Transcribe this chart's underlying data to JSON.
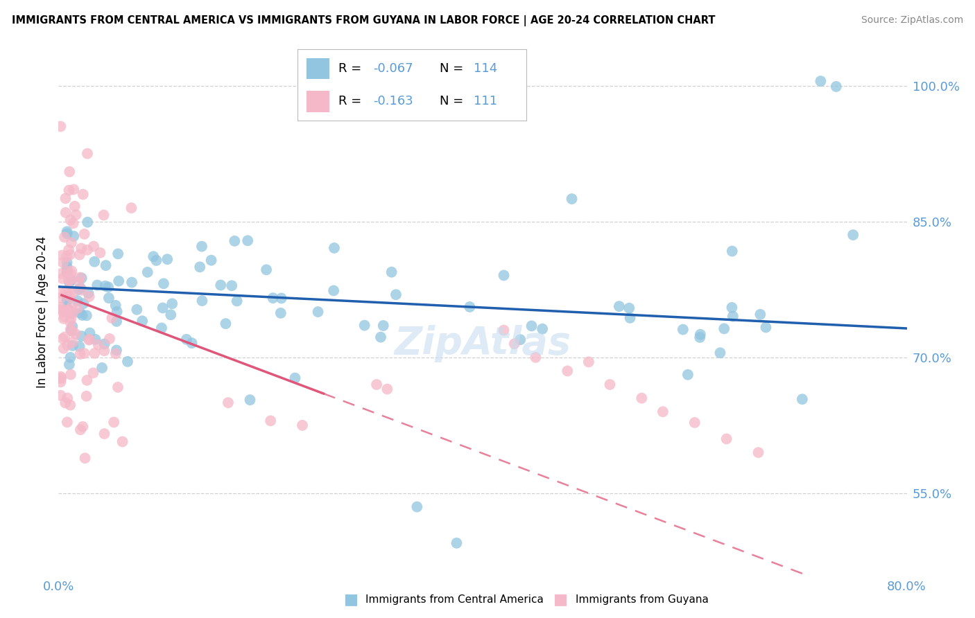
{
  "title": "IMMIGRANTS FROM CENTRAL AMERICA VS IMMIGRANTS FROM GUYANA IN LABOR FORCE | AGE 20-24 CORRELATION CHART",
  "source": "Source: ZipAtlas.com",
  "ylabel": "In Labor Force | Age 20-24",
  "x_min": 0.0,
  "x_max": 0.8,
  "y_min": 0.46,
  "y_max": 1.04,
  "y_ticks": [
    0.55,
    0.7,
    0.85,
    1.0
  ],
  "y_tick_labels": [
    "55.0%",
    "70.0%",
    "85.0%",
    "100.0%"
  ],
  "legend_r_blue": "-0.067",
  "legend_n_blue": "114",
  "legend_r_pink": "-0.163",
  "legend_n_pink": "111",
  "blue_color": "#92C5E0",
  "pink_color": "#F5B8C8",
  "blue_line_color": "#1F5FAD",
  "pink_line_color": "#E0567A",
  "tick_color": "#5B9BD5",
  "grid_color": "#D0D0D0",
  "watermark_color": "#C8DEF0",
  "blue_label": "Immigrants from Central America",
  "pink_label": "Immigrants from Guyana"
}
